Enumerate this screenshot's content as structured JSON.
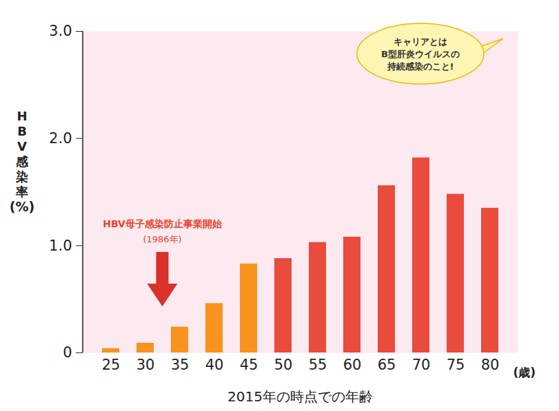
{
  "chart_data": {
    "type": "bar",
    "categories": [
      25,
      30,
      35,
      40,
      45,
      50,
      55,
      60,
      65,
      70,
      75,
      80
    ],
    "values": [
      0.04,
      0.09,
      0.24,
      0.46,
      0.83,
      0.88,
      1.03,
      1.08,
      1.56,
      1.82,
      1.48,
      1.35
    ],
    "colors": [
      "#f7931e",
      "#f7931e",
      "#f7931e",
      "#f7931e",
      "#f7931e",
      "#e94b3c",
      "#e94b3c",
      "#e94b3c",
      "#e94b3c",
      "#e94b3c",
      "#e94b3c",
      "#e94b3c"
    ],
    "xlabel": "2015年の時点での年齢",
    "xunit": "(歳)",
    "ylabel": "HBV感染率(%)",
    "ylim": [
      0,
      3.0
    ],
    "yticks": [
      0,
      {
        "value": 1,
        "label": "1.0"
      },
      {
        "value": 2,
        "label": "2.0"
      },
      {
        "value": 3,
        "label": "3.0"
      }
    ],
    "annotations": [
      {
        "text": "キャリアとは\nB型肝炎ウイルスの\n持続感染のこと!"
      },
      {
        "text": "HBV母子感染防止事業開始\n(1986年)"
      }
    ]
  }
}
